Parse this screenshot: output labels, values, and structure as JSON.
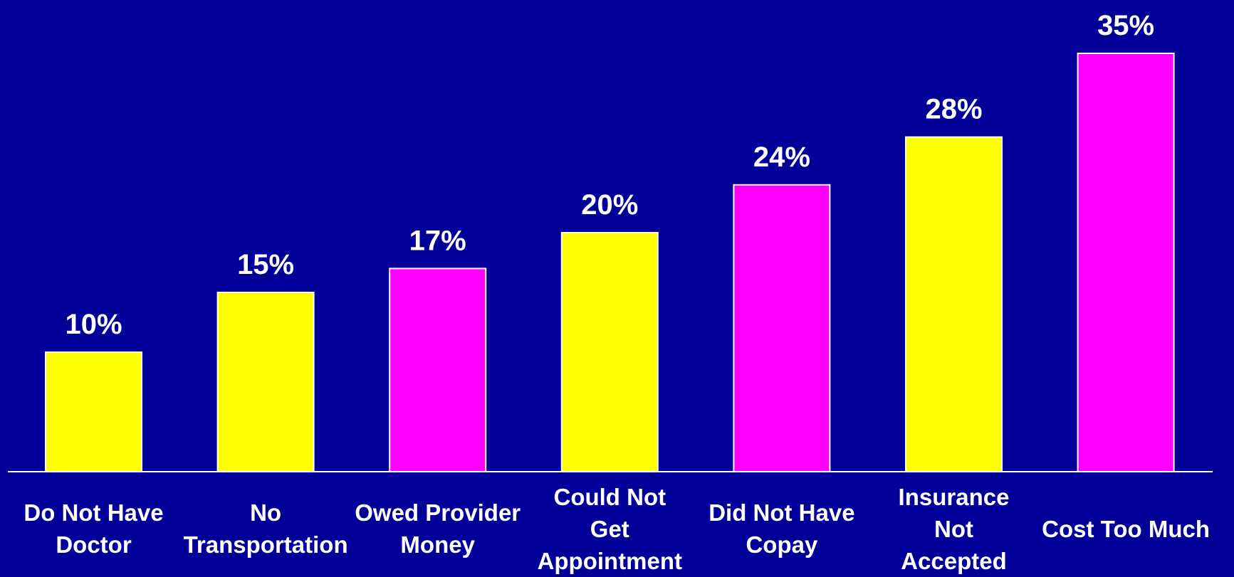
{
  "chart_data": {
    "type": "bar",
    "categories": [
      "Do Not Have Doctor",
      "No Transportation",
      "Owed Provider Money",
      "Could Not Get Appointment",
      "Did Not Have Copay",
      "Insurance Not Accepted",
      "Cost Too Much"
    ],
    "values": [
      10,
      15,
      17,
      20,
      24,
      28,
      35
    ],
    "value_labels": [
      "10%",
      "15%",
      "17%",
      "20%",
      "24%",
      "28%",
      "35%"
    ],
    "colors": [
      "#ffff00",
      "#ffff00",
      "#ff00ff",
      "#ffff00",
      "#ff00ff",
      "#ffff00",
      "#ff00ff"
    ]
  }
}
